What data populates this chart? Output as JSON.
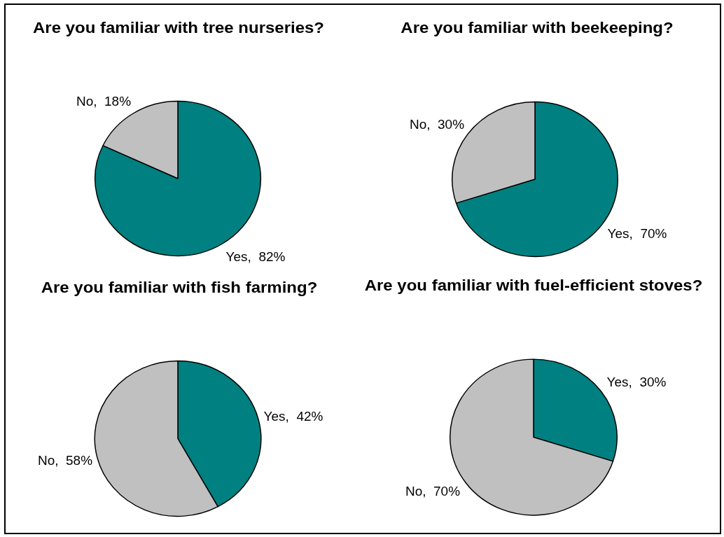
{
  "chart_data": [
    {
      "type": "pie",
      "title": "Are you familiar with tree nurseries?",
      "categories": [
        "Yes",
        "No"
      ],
      "values": [
        82,
        18
      ],
      "colors": [
        "#008080",
        "#c0c0c0"
      ],
      "value_labels": [
        "82%",
        "18%"
      ]
    },
    {
      "type": "pie",
      "title": "Are you familiar with beekeeping?",
      "categories": [
        "Yes",
        "No"
      ],
      "values": [
        70,
        30
      ],
      "colors": [
        "#008080",
        "#c0c0c0"
      ],
      "value_labels": [
        "70%",
        "30%"
      ]
    },
    {
      "type": "pie",
      "title": "Are you familiar with fish farming?",
      "categories": [
        "Yes",
        "No"
      ],
      "values": [
        42,
        58
      ],
      "colors": [
        "#008080",
        "#c0c0c0"
      ],
      "value_labels": [
        "42%",
        "58%"
      ]
    },
    {
      "type": "pie",
      "title": "Are you familiar with fuel-efficient stoves?",
      "categories": [
        "Yes",
        "No"
      ],
      "values": [
        30,
        70
      ],
      "colors": [
        "#008080",
        "#c0c0c0"
      ],
      "value_labels": [
        "30%",
        "70%"
      ]
    }
  ]
}
